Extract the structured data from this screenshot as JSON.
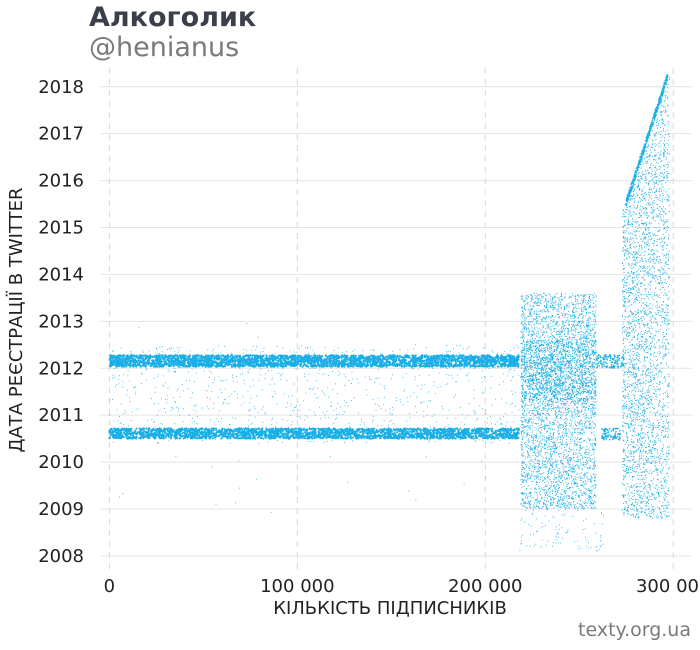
{
  "header": {
    "title": "Алкоголик",
    "subtitle": "@henianus"
  },
  "footer": {
    "source": "texty.org.ua"
  },
  "chart_data": {
    "type": "scatter",
    "xlabel": "КІЛЬКІСТЬ ПІДПИСНИКІВ",
    "ylabel": "ДАТА РЕЄСТРАЦІЇ В TWITTER",
    "x_ticks": [
      {
        "value": 0,
        "label": "0"
      },
      {
        "value": 100000,
        "label": "100 000"
      },
      {
        "value": 200000,
        "label": "200 000"
      },
      {
        "value": 300000,
        "label": "300 000"
      }
    ],
    "y_ticks": [
      {
        "value": 2008,
        "label": "2008"
      },
      {
        "value": 2009,
        "label": "2009"
      },
      {
        "value": 2010,
        "label": "2010"
      },
      {
        "value": 2011,
        "label": "2011"
      },
      {
        "value": 2012,
        "label": "2012"
      },
      {
        "value": 2013,
        "label": "2013"
      },
      {
        "value": 2014,
        "label": "2014"
      },
      {
        "value": 2015,
        "label": "2015"
      },
      {
        "value": 2016,
        "label": "2016"
      },
      {
        "value": 2017,
        "label": "2017"
      },
      {
        "value": 2018,
        "label": "2018"
      }
    ],
    "xlim": [
      -5000,
      310000
    ],
    "ylim": [
      2007.7,
      2018.4
    ],
    "grid": true,
    "point_color": "#1aaee6",
    "series": [
      {
        "x": [
          0,
          218000
        ],
        "y": [
          2012.15,
          2012.15
        ]
      },
      {
        "x": [
          0,
          218000
        ],
        "y": [
          2010.6,
          2010.6
        ]
      },
      {
        "x": [
          219000,
          259000
        ],
        "y": [
          2009.0,
          2013.6
        ]
      },
      {
        "x": [
          273000,
          298000
        ],
        "y": [
          2008.6,
          2018.3
        ]
      }
    ]
  }
}
